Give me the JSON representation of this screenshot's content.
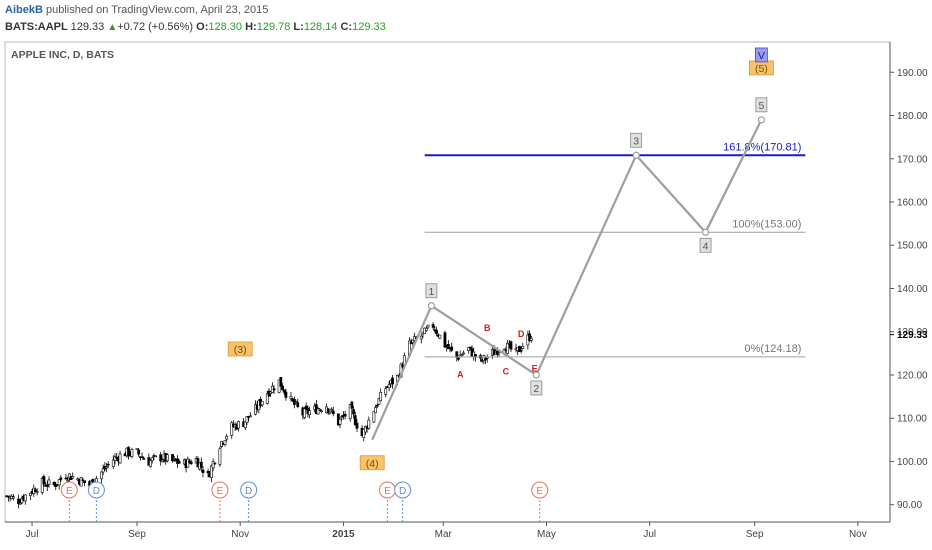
{
  "header": {
    "author": "AibekB",
    "published": "published on TradingView.com, April 23, 2015",
    "symbol": "BATS:AAPL",
    "last": "129.33",
    "change": "+0.72 (+0.56%)",
    "open_label": "O:",
    "open": "128.30",
    "high_label": "H:",
    "high": "129.78",
    "low_label": "L:",
    "low": "128.14",
    "close_label": "C:",
    "close": "129.33"
  },
  "colors": {
    "candle": "#000000",
    "wave": "#9e9e9e",
    "fib_extension": "#1a1acc",
    "fib_line": "#9e9e9e",
    "earnings": "#e8715e",
    "dividend": "#5b8ed6",
    "wave_label_bg": "#f7c46c",
    "wave_v_bg": "#9a9aef",
    "subwave_label": "#d01f1f",
    "up_change": "#2a9d2a"
  },
  "chart_data": {
    "type": "candlestick",
    "title": "APPLE INC, D, BATS",
    "ylim": [
      86,
      197
    ],
    "xlim": [
      "2014-06-15",
      "2015-11-20"
    ],
    "y_ticks": [
      90,
      100,
      110,
      120,
      130,
      140,
      150,
      160,
      170,
      180,
      190
    ],
    "y_tick_labels": [
      "90.00",
      "100.00",
      "110.00",
      "120.00",
      "130.00",
      "140.00",
      "150.00",
      "160.00",
      "170.00",
      "180.00",
      "190.00"
    ],
    "last_price_label": "129.33",
    "x_ticks": [
      {
        "date": "2014-07-01",
        "label": "Jul",
        "bold": false
      },
      {
        "date": "2014-09-01",
        "label": "Sep",
        "bold": false
      },
      {
        "date": "2014-11-01",
        "label": "Nov",
        "bold": false
      },
      {
        "date": "2015-01-01",
        "label": "2015",
        "bold": true
      },
      {
        "date": "2015-03-01",
        "label": "Mar",
        "bold": false
      },
      {
        "date": "2015-05-01",
        "label": "May",
        "bold": false
      },
      {
        "date": "2015-07-01",
        "label": "Jul",
        "bold": false
      },
      {
        "date": "2015-09-01",
        "label": "Sep",
        "bold": false
      },
      {
        "date": "2015-11-01",
        "label": "Nov",
        "bold": false
      }
    ],
    "close_path": [
      [
        "2014-06-16",
        92
      ],
      [
        "2014-06-23",
        91
      ],
      [
        "2014-06-30",
        93
      ],
      [
        "2014-07-07",
        95
      ],
      [
        "2014-07-14",
        94.5
      ],
      [
        "2014-07-21",
        97
      ],
      [
        "2014-07-28",
        96
      ],
      [
        "2014-08-04",
        94.5
      ],
      [
        "2014-08-11",
        97.5
      ],
      [
        "2014-08-18",
        100.5
      ],
      [
        "2014-08-25",
        102
      ],
      [
        "2014-09-01",
        102
      ],
      [
        "2014-09-08",
        100
      ],
      [
        "2014-09-15",
        101
      ],
      [
        "2014-09-22",
        100
      ],
      [
        "2014-09-29",
        99.5
      ],
      [
        "2014-10-06",
        100.5
      ],
      [
        "2014-10-13",
        96.5
      ],
      [
        "2014-10-20",
        104
      ],
      [
        "2014-10-27",
        108
      ],
      [
        "2014-11-03",
        109
      ],
      [
        "2014-11-10",
        112
      ],
      [
        "2014-11-17",
        116
      ],
      [
        "2014-11-24",
        118.5
      ],
      [
        "2014-12-01",
        114
      ],
      [
        "2014-12-08",
        111
      ],
      [
        "2014-12-15",
        112
      ],
      [
        "2014-12-22",
        113
      ],
      [
        "2014-12-29",
        109
      ],
      [
        "2015-01-05",
        112
      ],
      [
        "2015-01-12",
        106
      ],
      [
        "2015-01-19",
        112
      ],
      [
        "2015-01-26",
        117
      ],
      [
        "2015-02-02",
        119.5
      ],
      [
        "2015-02-09",
        127
      ],
      [
        "2015-02-16",
        129
      ],
      [
        "2015-02-23",
        131.5
      ],
      [
        "2015-03-02",
        127
      ],
      [
        "2015-03-09",
        124
      ],
      [
        "2015-03-16",
        126
      ],
      [
        "2015-03-23",
        123
      ],
      [
        "2015-03-30",
        125
      ],
      [
        "2015-04-06",
        127
      ],
      [
        "2015-04-13",
        125
      ],
      [
        "2015-04-20",
        128.5
      ],
      [
        "2015-04-22",
        129.33
      ]
    ],
    "waves": [
      {
        "label": "(3)",
        "date": "2014-11-01",
        "price": 126,
        "type": "orange"
      },
      {
        "label": "(4)",
        "date": "2015-01-18",
        "price": 99.7,
        "type": "orange"
      },
      {
        "label": "(5)",
        "date": "2015-09-05",
        "price": 191,
        "type": "orange"
      },
      {
        "label": "V",
        "date": "2015-09-05",
        "price": 194,
        "type": "violet"
      }
    ],
    "projection": {
      "points": [
        {
          "label": "1",
          "date": "2015-02-22",
          "price": 136,
          "label_pos": "above"
        },
        {
          "label": "2",
          "date": "2015-04-25",
          "price": 120,
          "label_pos": "below"
        },
        {
          "label": "3",
          "date": "2015-06-23",
          "price": 170.81,
          "label_pos": "above"
        },
        {
          "label": "4",
          "date": "2015-08-03",
          "price": 153,
          "label_pos": "below"
        },
        {
          "label": "5",
          "date": "2015-09-05",
          "price": 179,
          "label_pos": "above"
        }
      ],
      "start": {
        "date": "2015-01-18",
        "price": 105
      }
    },
    "subwaves": [
      {
        "label": "A",
        "date": "2015-03-11",
        "price": 120.3
      },
      {
        "label": "B",
        "date": "2015-03-27",
        "price": 131.1
      },
      {
        "label": "C",
        "date": "2015-04-07",
        "price": 121
      },
      {
        "label": "D",
        "date": "2015-04-16",
        "price": 129.7
      },
      {
        "label": "E",
        "date": "2015-04-24",
        "price": 121.7
      }
    ],
    "fib_levels": [
      {
        "label": "161.8%(170.81)",
        "price": 170.81,
        "from": "2015-02-18",
        "to": "2015-10-01",
        "color": "blue"
      },
      {
        "label": "100%(153.00)",
        "price": 153.0,
        "from": "2015-02-18",
        "to": "2015-10-01",
        "color": "gray"
      },
      {
        "label": "0%(124.18)",
        "price": 124.18,
        "from": "2015-02-18",
        "to": "2015-10-01",
        "color": "gray"
      }
    ],
    "events": [
      {
        "label": "E",
        "kind": "earnings",
        "date": "2014-07-23"
      },
      {
        "label": "D",
        "kind": "dividend",
        "date": "2014-08-08"
      },
      {
        "label": "E",
        "kind": "earnings",
        "date": "2014-10-20"
      },
      {
        "label": "D",
        "kind": "dividend",
        "date": "2014-11-06"
      },
      {
        "label": "E",
        "kind": "earnings",
        "date": "2015-01-27"
      },
      {
        "label": "D",
        "kind": "dividend",
        "date": "2015-02-05"
      },
      {
        "label": "E",
        "kind": "earnings",
        "date": "2015-04-27"
      }
    ]
  }
}
